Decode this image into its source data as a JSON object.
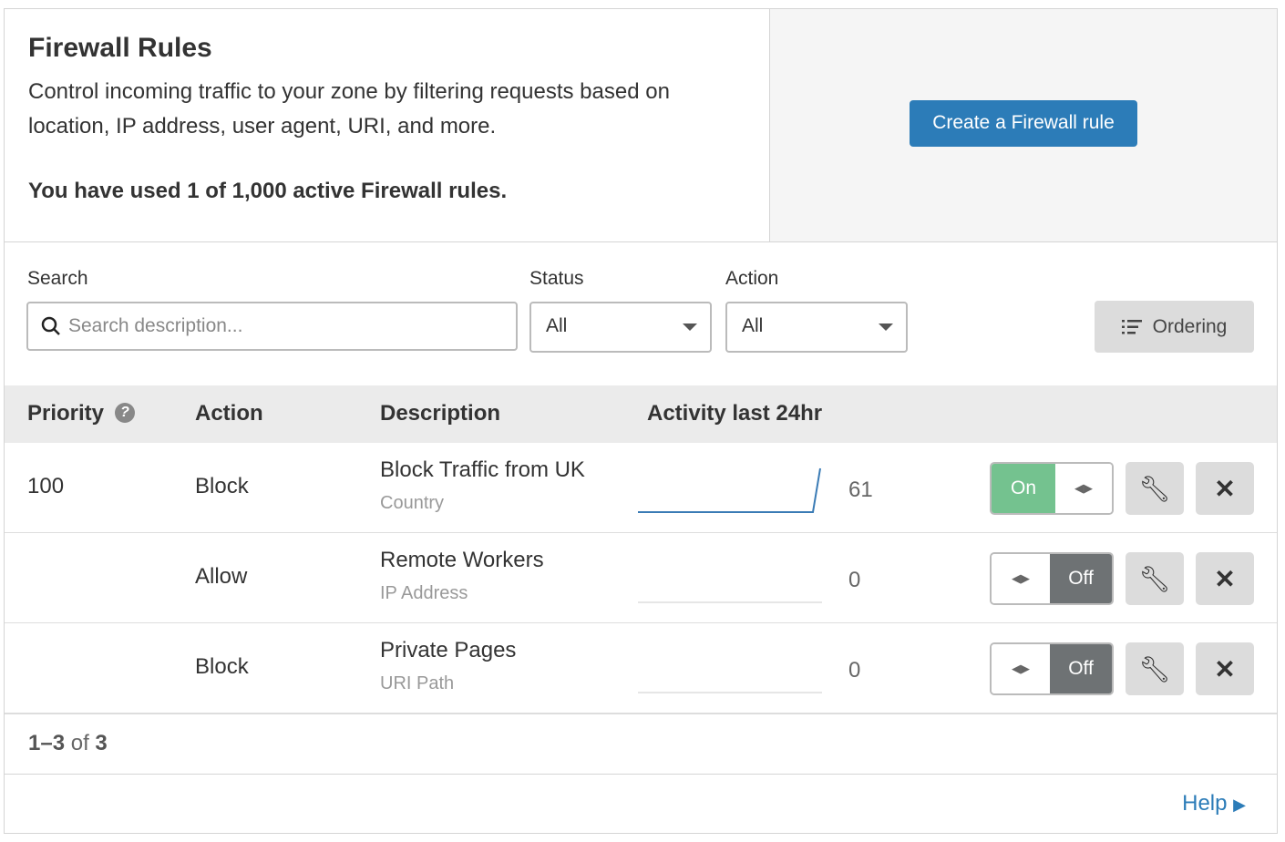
{
  "header": {
    "title": "Firewall Rules",
    "description": "Control incoming traffic to your zone by filtering requests based on location, IP address, user agent, URI, and more.",
    "usage": "You have used 1 of 1,000 active Firewall rules.",
    "create_button": "Create a Firewall rule"
  },
  "filters": {
    "search_label": "Search",
    "search_placeholder": "Search description...",
    "status_label": "Status",
    "status_value": "All",
    "action_label": "Action",
    "action_value": "All",
    "ordering_button": "Ordering"
  },
  "table": {
    "headers": {
      "priority": "Priority",
      "action": "Action",
      "description": "Description",
      "activity": "Activity last 24hr"
    },
    "rows": [
      {
        "priority": "100",
        "action": "Block",
        "name": "Block Traffic from UK",
        "type": "Country",
        "activity": "61",
        "enabled": true,
        "toggle_label": "On"
      },
      {
        "priority": "",
        "action": "Allow",
        "name": "Remote Workers",
        "type": "IP Address",
        "activity": "0",
        "enabled": false,
        "toggle_label": "Off"
      },
      {
        "priority": "",
        "action": "Block",
        "name": "Private Pages",
        "type": "URI Path",
        "activity": "0",
        "enabled": false,
        "toggle_label": "Off"
      }
    ]
  },
  "pagination": {
    "range": "1–3",
    "of": "of",
    "total": "3"
  },
  "help_link": "Help",
  "colors": {
    "primary": "#2c7cb8",
    "on": "#74c28f",
    "off": "#6e7274"
  }
}
